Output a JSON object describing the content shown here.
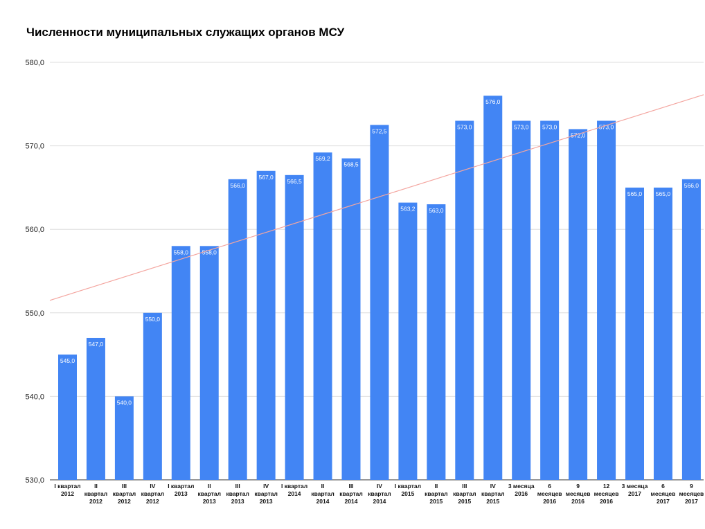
{
  "chart_data": {
    "type": "bar",
    "title": "Численности муниципальных служащих органов МСУ",
    "xlabel": "",
    "ylabel": "",
    "ylim": [
      530,
      580
    ],
    "yticks": [
      "530,0",
      "540,0",
      "550,0",
      "560,0",
      "570,0",
      "580,0"
    ],
    "grid": true,
    "legend": "none",
    "trendline": true,
    "bar_color": "#4285f4",
    "trend_color": "#f4a6a0",
    "categories": [
      [
        "I квартал",
        "2012"
      ],
      [
        "II",
        "квартал",
        "2012"
      ],
      [
        "III",
        "квартал",
        "2012"
      ],
      [
        "IV",
        "квартал",
        "2012"
      ],
      [
        "I квартал",
        "2013"
      ],
      [
        "II",
        "квартал",
        "2013"
      ],
      [
        "III",
        "квартал",
        "2013"
      ],
      [
        "IV",
        "квартал",
        "2013"
      ],
      [
        "I квартал",
        "2014"
      ],
      [
        "II",
        "квартал",
        "2014"
      ],
      [
        "III",
        "квартал",
        "2014"
      ],
      [
        "IV",
        "квартал",
        "2014"
      ],
      [
        "I квартал",
        "2015"
      ],
      [
        "II",
        "квартал",
        "2015"
      ],
      [
        "III",
        "квартал",
        "2015"
      ],
      [
        "IV",
        "квартал",
        "2015"
      ],
      [
        "3 месяца",
        "2016"
      ],
      [
        "6",
        "месяцев",
        "2016"
      ],
      [
        "9",
        "месяцев",
        "2016"
      ],
      [
        "12",
        "месяцев",
        "2016"
      ],
      [
        "3 месяца",
        "2017"
      ],
      [
        "6",
        "месяцев",
        "2017"
      ],
      [
        "9",
        "месяцев",
        "2017"
      ]
    ],
    "values": [
      545.0,
      547.0,
      540.0,
      550.0,
      558.0,
      558.0,
      566.0,
      567.0,
      566.5,
      569.2,
      568.5,
      572.5,
      563.2,
      563.0,
      573.0,
      576.0,
      573.0,
      573.0,
      572.0,
      573.0,
      565.0,
      565.0,
      566.0
    ],
    "value_labels": [
      "545,0",
      "547,0",
      "540,0",
      "550,0",
      "558,0",
      "558,0",
      "566,0",
      "567,0",
      "566,5",
      "569,2",
      "568,5",
      "572,5",
      "563,2",
      "563,0",
      "573,0",
      "576,0",
      "573,0",
      "573,0",
      "572,0",
      "573,0",
      "565,0",
      "565,0",
      "566,0"
    ]
  }
}
